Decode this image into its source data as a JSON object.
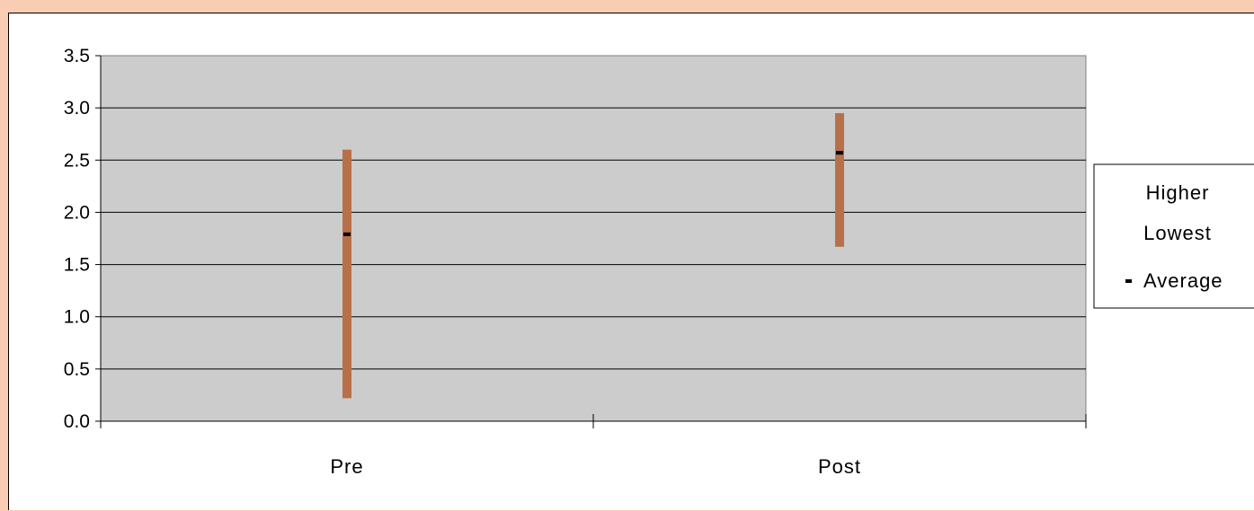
{
  "chart_data": {
    "type": "high-low-average",
    "categories": [
      "Pre",
      "Post"
    ],
    "series": [
      {
        "name": "Higher",
        "values": [
          2.6,
          2.95
        ]
      },
      {
        "name": "Lowest",
        "values": [
          0.22,
          1.67
        ]
      },
      {
        "name": "Average",
        "values": [
          1.79,
          2.57
        ]
      }
    ],
    "ylim": [
      0,
      3.5
    ],
    "ytick_step": 0.5,
    "ytick_labels": [
      "0.0",
      "0.5",
      "1.0",
      "1.5",
      "2.0",
      "2.5",
      "3.0",
      "3.5"
    ],
    "grid": true,
    "legend_position": "right",
    "plot_background": "#cccccc",
    "bar_color": "#b8704a",
    "marker_color": "#000000",
    "page_background": "#f9ccb4"
  }
}
